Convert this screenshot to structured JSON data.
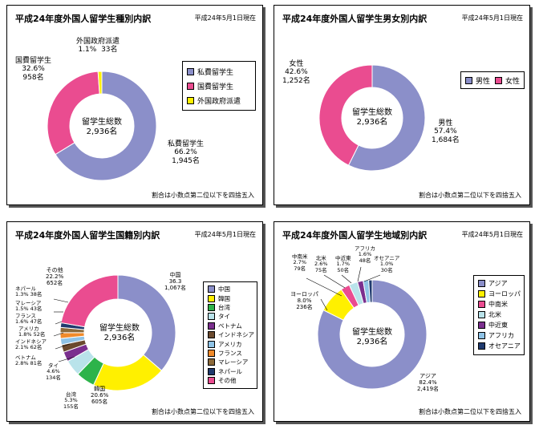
{
  "chart_data": [
    {
      "type": "pie",
      "title": "平成24年度外国人留学生種別内訳",
      "date": "平成24年5月1日現在",
      "note": "割合は小数点第二位以下を四捨五入",
      "center_label": "留学生総数",
      "center_value": "2,936名",
      "categories": [
        "私費留学生",
        "国費留学生",
        "外国政府派遣"
      ],
      "values": [
        1945,
        958,
        33
      ],
      "percent_labels": [
        "66.2%",
        "32.6%",
        "1.1%"
      ],
      "count_labels": [
        "1,945名",
        "958名",
        "33名"
      ],
      "colors": [
        "#8b8fc9",
        "#ea4c90",
        "#fff000"
      ]
    },
    {
      "type": "pie",
      "title": "平成24年度外国人留学生男女別内訳",
      "date": "平成24年5月1日現在",
      "note": "割合は小数点第二位以下を四捨五入",
      "center_label": "留学生総数",
      "center_value": "2,936名",
      "categories": [
        "男性",
        "女性"
      ],
      "values": [
        1684,
        1252
      ],
      "percent_labels": [
        "57.4%",
        "42.6%"
      ],
      "count_labels": [
        "1,684名",
        "1,252名"
      ],
      "colors": [
        "#8b8fc9",
        "#ea4c90"
      ]
    },
    {
      "type": "pie",
      "title": "平成24年度外国人留学生国籍別内訳",
      "date": "平成24年5月1日現在",
      "note": "割合は小数点第二位以下を四捨五入",
      "center_label": "留学生総数",
      "center_value": "2,936名",
      "categories": [
        "中国",
        "韓国",
        "台湾",
        "タイ",
        "ベトナム",
        "インドネシア",
        "アメリカ",
        "フランス",
        "マレーシア",
        "ネパール",
        "その他"
      ],
      "values": [
        1067,
        605,
        155,
        134,
        81,
        62,
        52,
        47,
        43,
        38,
        652
      ],
      "percent_labels": [
        "36.3",
        "20.6%",
        "5.3%",
        "4.6%",
        "2.8%",
        "2.1%",
        "1.8%",
        "1.6%",
        "1.5%",
        "1.3%",
        "22.2%"
      ],
      "count_labels": [
        "1,067名",
        "605名",
        "155名",
        "134名",
        "81名",
        "62名",
        "52名",
        "47名",
        "43名",
        "38名",
        "652名"
      ],
      "colors": [
        "#8b8fc9",
        "#fff000",
        "#2db34a",
        "#b9e3ea",
        "#7b2f8e",
        "#6b4a2e",
        "#8fc3e6",
        "#f08a2a",
        "#8c6a3a",
        "#1f3a6e",
        "#ea4c90"
      ]
    },
    {
      "type": "pie",
      "title": "平成24年度外国人留学生地域別内訳",
      "date": "平成24年5月1日現在",
      "note": "割合は小数点第二位以下を四捨五入",
      "center_label": "留学生総数",
      "center_value": "2,936名",
      "categories": [
        "アジア",
        "ヨーロッパ",
        "中南米",
        "北米",
        "中近東",
        "アフリカ",
        "オセアニア"
      ],
      "values": [
        2419,
        236,
        79,
        75,
        50,
        48,
        30
      ],
      "percent_labels": [
        "82.4%",
        "8.0%",
        "2.7%",
        "2.6%",
        "1.7%",
        "1.6%",
        "1.0%"
      ],
      "count_labels": [
        "2,419名",
        "236名",
        "79名",
        "75名",
        "50名",
        "48名",
        "30名"
      ],
      "colors": [
        "#8b8fc9",
        "#fff000",
        "#ea4c90",
        "#b9e3ea",
        "#7b2f8e",
        "#8fc3e6",
        "#1f3a6e"
      ]
    }
  ]
}
